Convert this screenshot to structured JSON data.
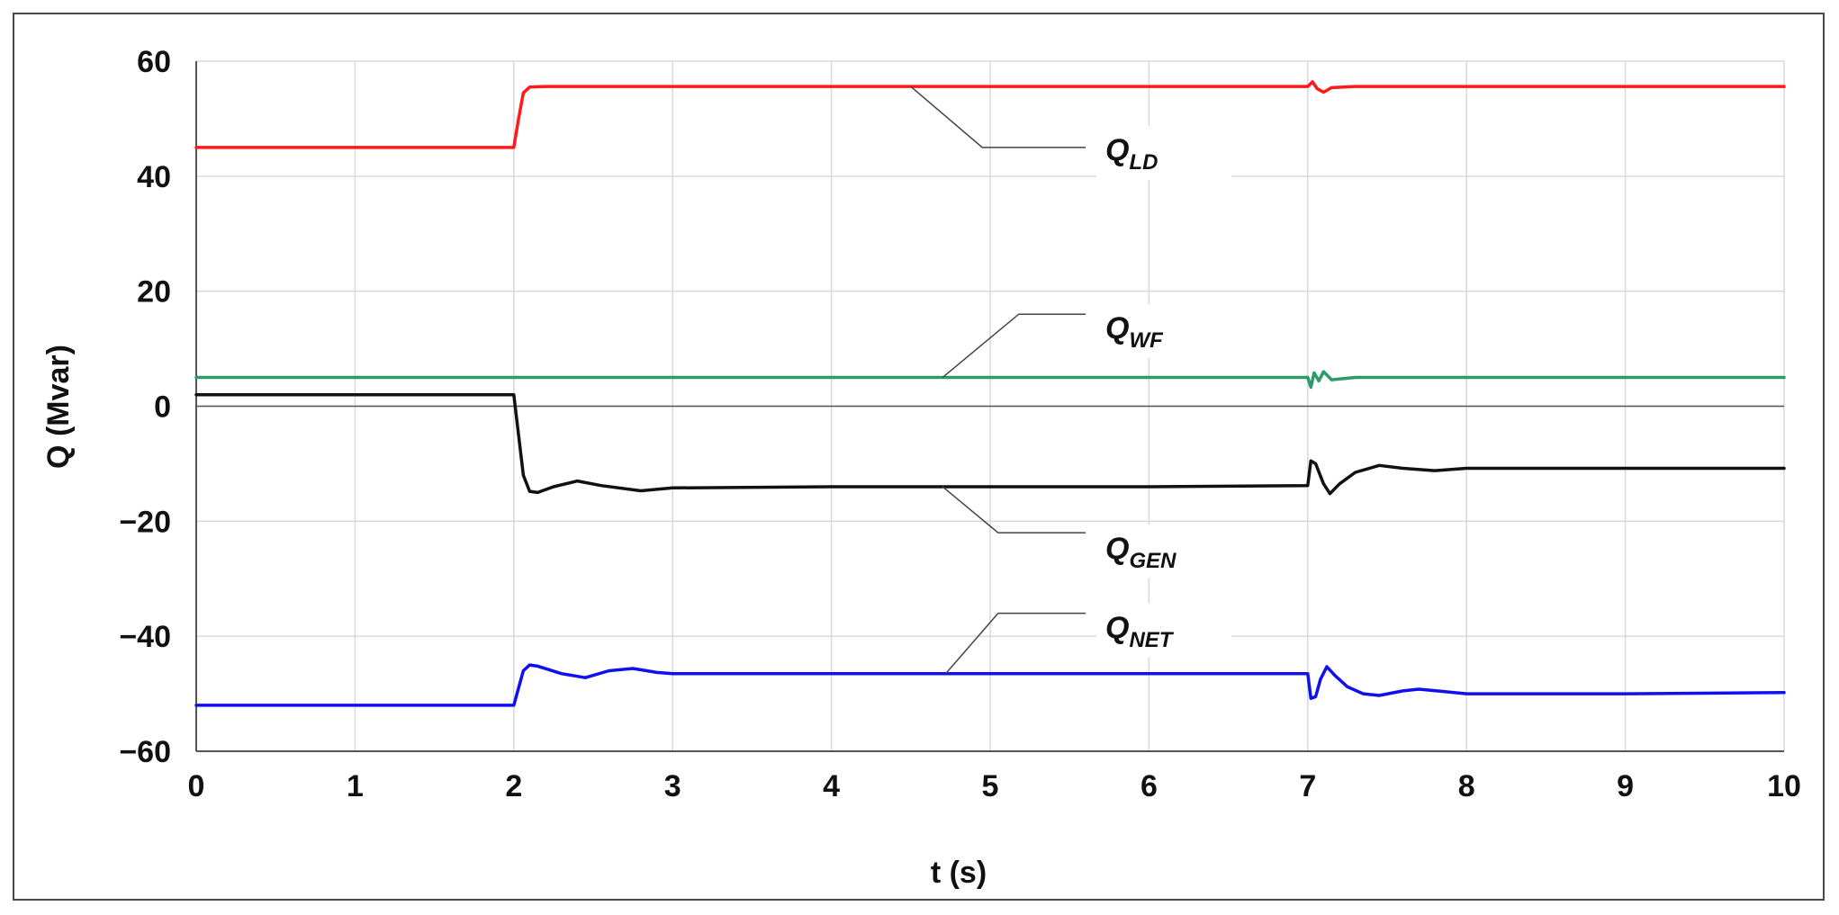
{
  "chart_data": {
    "type": "line",
    "title": "",
    "xlabel": "t (s)",
    "ylabel": "Q (Mvar)",
    "xlim": [
      0,
      10
    ],
    "ylim": [
      -60,
      60
    ],
    "xticks": [
      0,
      1,
      2,
      3,
      4,
      5,
      6,
      7,
      8,
      9,
      10
    ],
    "yticks": [
      -60,
      -40,
      -20,
      0,
      20,
      40,
      60
    ],
    "xtick_labels": [
      "0",
      "1",
      "2",
      "3",
      "4",
      "5",
      "6",
      "7",
      "8",
      "9",
      "10"
    ],
    "ytick_labels": [
      "−60",
      "−40",
      "−20",
      "0",
      "20",
      "40",
      "60"
    ],
    "grid": true,
    "series": [
      {
        "name": "Q_LD",
        "label_main": "Q",
        "label_sub": "LD",
        "color": "#ff1a1a",
        "x": [
          0,
          2.0,
          2.03,
          2.06,
          2.1,
          2.2,
          7.0,
          7.03,
          7.06,
          7.1,
          7.15,
          7.3,
          10
        ],
        "y": [
          45,
          45,
          50,
          54.5,
          55.5,
          55.6,
          55.6,
          56.4,
          55.2,
          54.6,
          55.4,
          55.6,
          55.6
        ]
      },
      {
        "name": "Q_WF",
        "label_main": "Q",
        "label_sub": "WF",
        "color": "#2e9a6a",
        "x": [
          0,
          7.0,
          7.02,
          7.04,
          7.07,
          7.1,
          7.15,
          7.3,
          10
        ],
        "y": [
          5,
          5,
          3.3,
          5.8,
          4.4,
          6.0,
          4.6,
          5.0,
          5.0
        ]
      },
      {
        "name": "Q_GEN",
        "label_main": "Q",
        "label_sub": "GEN",
        "color": "#111111",
        "x": [
          0,
          2.0,
          2.03,
          2.06,
          2.1,
          2.15,
          2.25,
          2.4,
          2.55,
          2.8,
          3.0,
          4.0,
          5.0,
          6.0,
          7.0,
          7.02,
          7.05,
          7.1,
          7.14,
          7.2,
          7.3,
          7.45,
          7.6,
          7.8,
          8.0,
          9.0,
          10
        ],
        "y": [
          2,
          2,
          -5,
          -12,
          -14.8,
          -15,
          -14,
          -13,
          -13.8,
          -14.7,
          -14.2,
          -14,
          -14,
          -14,
          -13.8,
          -9.5,
          -10,
          -13.5,
          -15.2,
          -13.5,
          -11.5,
          -10.3,
          -10.8,
          -11.2,
          -10.8,
          -10.8,
          -10.8
        ]
      },
      {
        "name": "Q_NET",
        "label_main": "Q",
        "label_sub": "NET",
        "color": "#1010ee",
        "x": [
          0,
          2.0,
          2.03,
          2.06,
          2.1,
          2.15,
          2.3,
          2.45,
          2.6,
          2.75,
          2.9,
          3.0,
          4.0,
          5.0,
          6.0,
          7.0,
          7.02,
          7.05,
          7.08,
          7.12,
          7.17,
          7.25,
          7.35,
          7.45,
          7.6,
          7.7,
          7.85,
          8.0,
          9.0,
          10
        ],
        "y": [
          -52,
          -52,
          -49,
          -46,
          -45,
          -45.2,
          -46.5,
          -47.2,
          -46,
          -45.6,
          -46.3,
          -46.5,
          -46.5,
          -46.5,
          -46.5,
          -46.5,
          -50.8,
          -50.5,
          -47.5,
          -45.3,
          -46.8,
          -48.8,
          -50,
          -50.3,
          -49.5,
          -49.2,
          -49.6,
          -50,
          -50,
          -49.8
        ]
      }
    ],
    "annotations": [
      {
        "series": "Q_LD",
        "main": "Q",
        "sub": "LD"
      },
      {
        "series": "Q_WF",
        "main": "Q",
        "sub": "WF"
      },
      {
        "series": "Q_GEN",
        "main": "Q",
        "sub": "GEN"
      },
      {
        "series": "Q_NET",
        "main": "Q",
        "sub": "NET"
      }
    ],
    "grid_color": "#d9d9d9",
    "axis_color": "#555555"
  }
}
